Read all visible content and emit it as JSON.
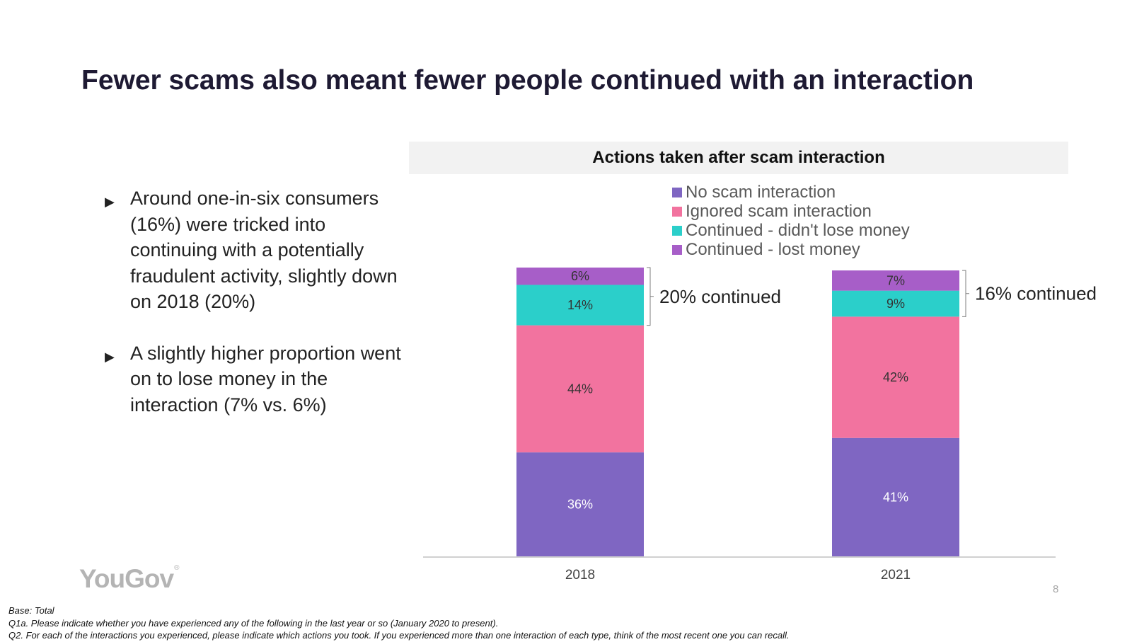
{
  "title": "Fewer scams also meant fewer people continued with an interaction",
  "bullets": [
    "Around one-in-six consumers (16%) were tricked into continuing with a potentially fraudulent activity, slightly down on 2018 (20%)",
    "A slightly higher proportion went on to lose money in the interaction (7% vs. 6%)"
  ],
  "bullet_icon": "triangle-right-icon",
  "logo_text": "YouGov",
  "logo_mark": "®",
  "page_number": "8",
  "footnotes": [
    "Base: Total",
    "Q1a. Please indicate whether you have experienced any of the following in the last year or so (January 2020 to present).",
    "Q2. For each of the interactions you experienced, please indicate which actions you took. If you experienced more than one interaction of each type, think of the most recent one you can recall."
  ],
  "chart_data": {
    "type": "bar",
    "stacked": true,
    "title": "Actions taken after scam interaction",
    "categories": [
      "2018",
      "2021"
    ],
    "series": [
      {
        "name": "No scam interaction",
        "values": [
          36,
          41
        ],
        "labels": [
          "36%",
          "41%"
        ],
        "color": "#7f66c2",
        "label_color": "#ffffff"
      },
      {
        "name": "Ignored scam interaction",
        "values": [
          44,
          42
        ],
        "labels": [
          "44%",
          "42%"
        ],
        "color": "#f2739f",
        "label_color": "#333333"
      },
      {
        "name": "Continued - didn't lose money",
        "values": [
          14,
          9
        ],
        "labels": [
          "14%",
          "9%"
        ],
        "color": "#2bcfca",
        "label_color": "#333333"
      },
      {
        "name": "Continued - lost money",
        "values": [
          6,
          7
        ],
        "labels": [
          "6%",
          "7%"
        ],
        "color": "#a75ec8",
        "label_color": "#333333"
      }
    ],
    "ylim": [
      0,
      100
    ],
    "annotations": [
      "20% continued",
      "16% continued"
    ],
    "legend_position": "top"
  }
}
